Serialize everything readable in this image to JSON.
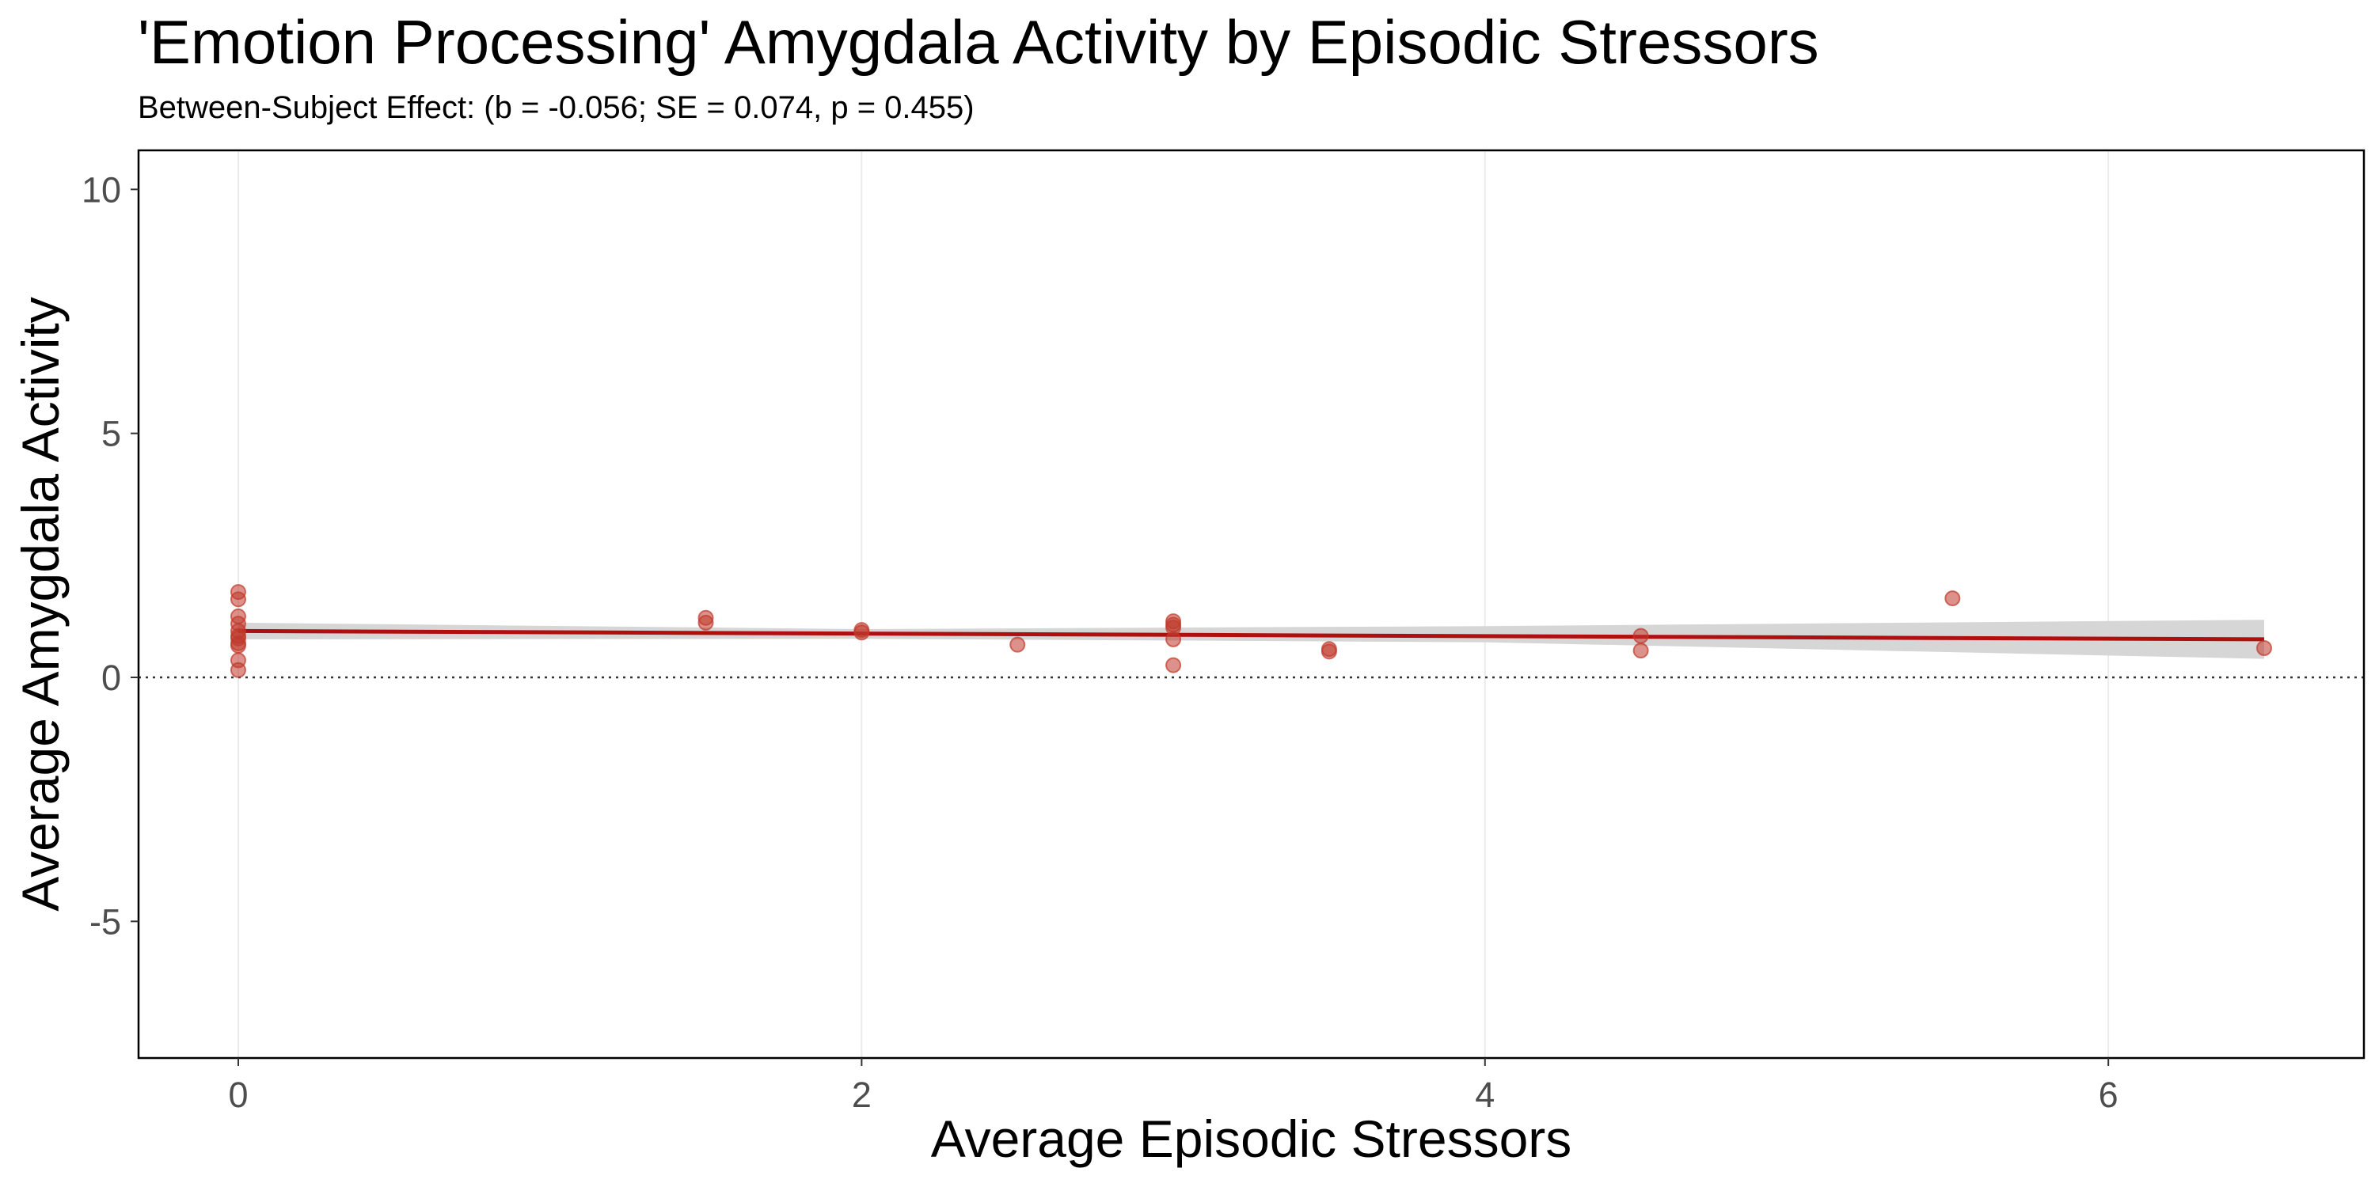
{
  "chart_data": {
    "type": "scatter",
    "title": "'Emotion Processing' Amygdala Activity by Episodic Stressors",
    "subtitle": "Between-Subject Effect: (b = -0.056; SE = 0.074, p = 0.455)",
    "xlabel": "Average Episodic Stressors",
    "ylabel": "Average Amygdala Activity",
    "xlim": [
      -0.32,
      6.82
    ],
    "ylim": [
      -7.8,
      10.8
    ],
    "x_ticks": [
      0,
      2,
      4,
      6
    ],
    "y_ticks": [
      -5,
      0,
      5,
      10
    ],
    "grid": "vertical major only",
    "reference_line": {
      "y": 0,
      "style": "dotted"
    },
    "colors": {
      "points": "#c0392b",
      "line": "#b00f0f",
      "band": "#d6d6d6",
      "frame": "#000000",
      "grid": "#ebebeb"
    },
    "points": [
      {
        "x": 0,
        "y": 1.75
      },
      {
        "x": 0,
        "y": 1.6
      },
      {
        "x": 0,
        "y": 1.25
      },
      {
        "x": 0,
        "y": 1.1
      },
      {
        "x": 0,
        "y": 0.95
      },
      {
        "x": 0,
        "y": 0.85
      },
      {
        "x": 0,
        "y": 0.8
      },
      {
        "x": 0,
        "y": 0.7
      },
      {
        "x": 0,
        "y": 0.65
      },
      {
        "x": 0,
        "y": 0.35
      },
      {
        "x": 0,
        "y": 0.15
      },
      {
        "x": 1.5,
        "y": 1.22
      },
      {
        "x": 1.5,
        "y": 1.12
      },
      {
        "x": 2,
        "y": 0.97
      },
      {
        "x": 2,
        "y": 0.92
      },
      {
        "x": 2.5,
        "y": 0.67
      },
      {
        "x": 3,
        "y": 1.15
      },
      {
        "x": 3,
        "y": 1.08
      },
      {
        "x": 3,
        "y": 1.02
      },
      {
        "x": 3,
        "y": 0.78
      },
      {
        "x": 3,
        "y": 0.25
      },
      {
        "x": 3.5,
        "y": 0.58
      },
      {
        "x": 3.5,
        "y": 0.53
      },
      {
        "x": 4.5,
        "y": 0.85
      },
      {
        "x": 4.5,
        "y": 0.55
      },
      {
        "x": 5.5,
        "y": 1.62
      },
      {
        "x": 6.5,
        "y": 0.6
      }
    ],
    "fit_line": {
      "x": [
        0,
        6.5
      ],
      "y": [
        0.95,
        0.78
      ]
    },
    "confidence_band": {
      "x": [
        0,
        2,
        4,
        6.5
      ],
      "lower": [
        0.78,
        0.79,
        0.72,
        0.38
      ],
      "upper": [
        1.12,
        0.99,
        1.05,
        1.18
      ]
    }
  }
}
